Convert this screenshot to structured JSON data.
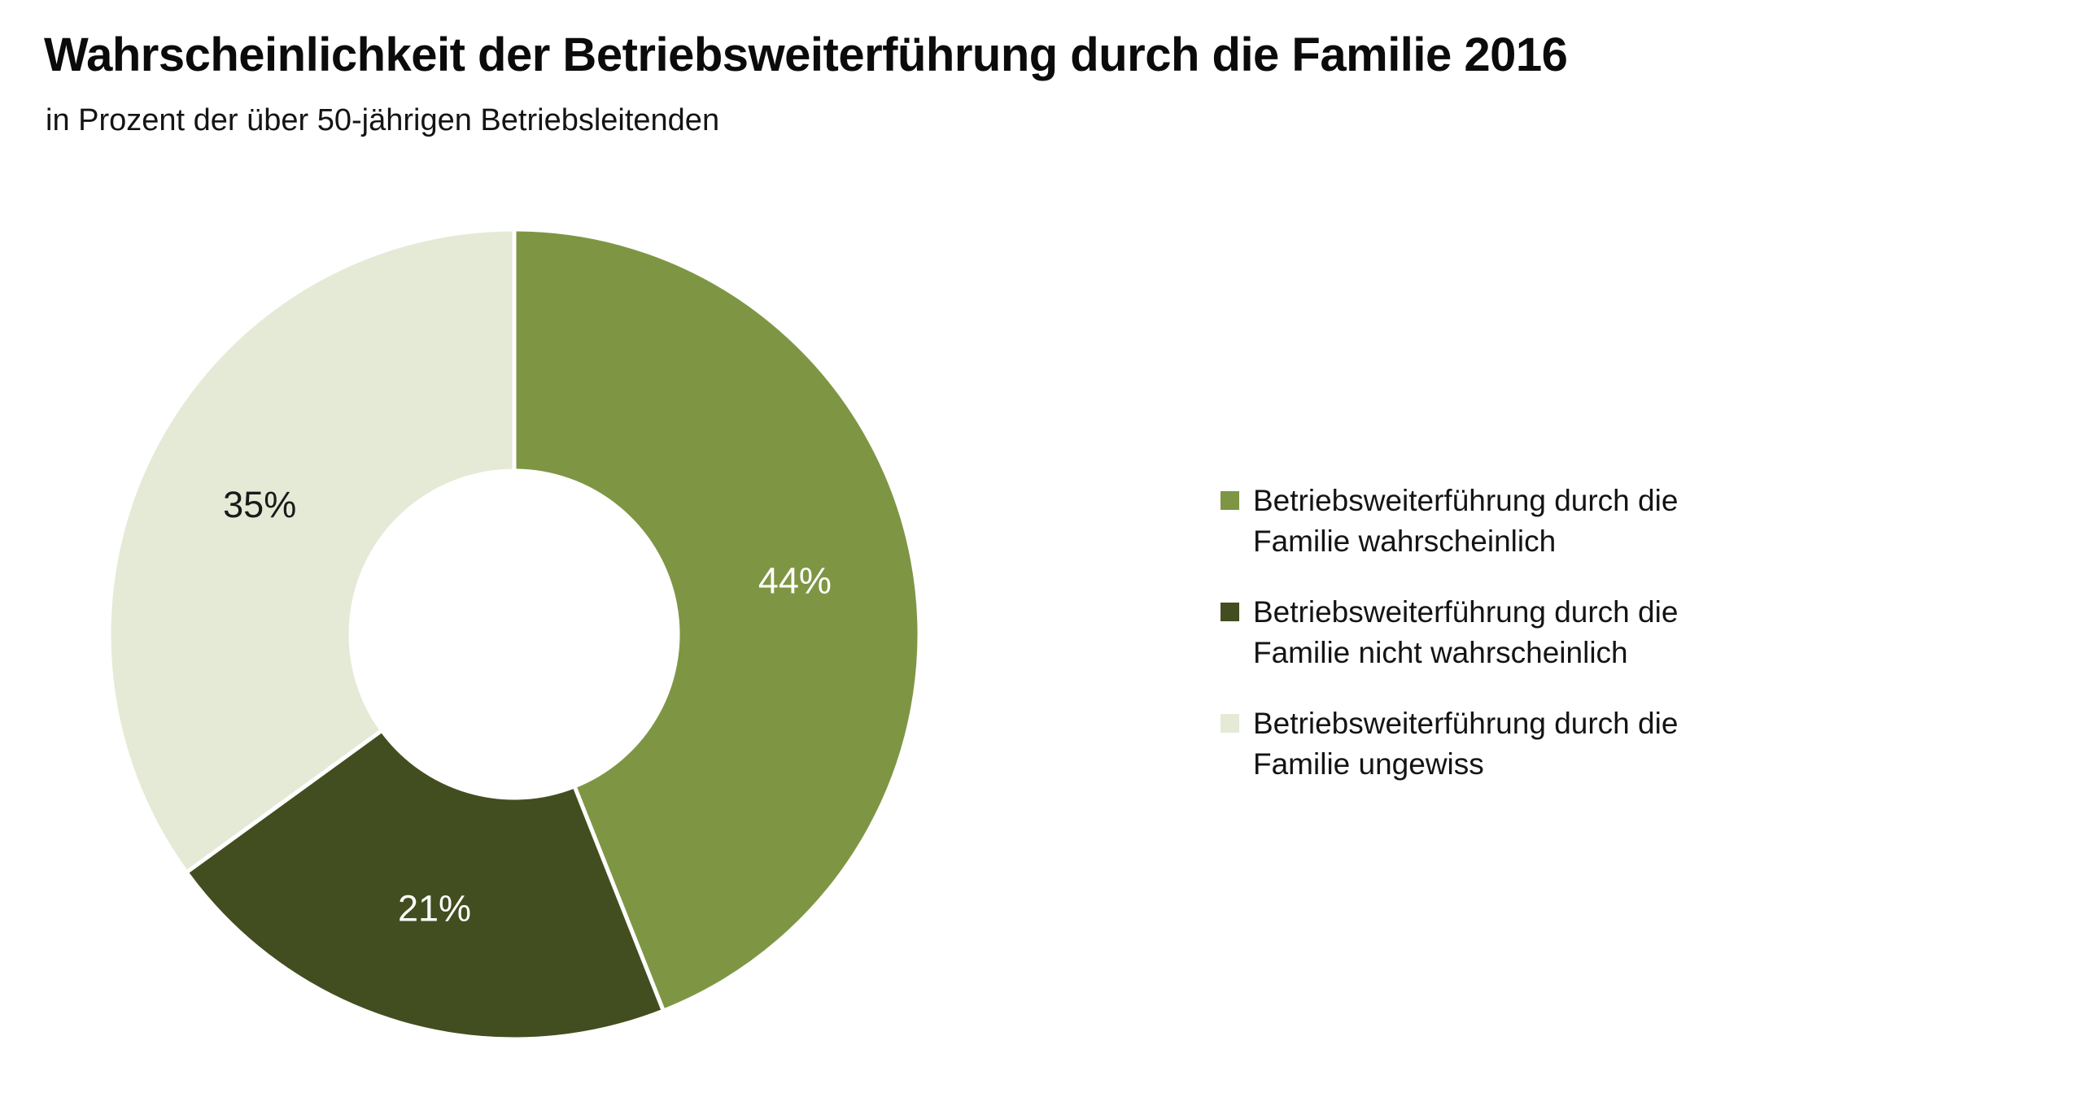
{
  "header": {
    "title": "Wahrscheinlichkeit der Betriebsweiterführung durch die Familie 2016",
    "subtitle": "in Prozent der über 50-jährigen Betriebsleitenden"
  },
  "chart_data": {
    "type": "pie",
    "donut": true,
    "title": "Wahrscheinlichkeit der Betriebsweiterführung durch die Familie 2016",
    "subtitle": "in Prozent der über 50-jährigen Betriebsleitenden",
    "categories": [
      "Betriebsweiterführung durch die Familie wahrscheinlich",
      "Betriebsweiterführung durch die Familie nicht wahrscheinlich",
      "Betriebsweiterführung durch die Familie ungewiss"
    ],
    "values": [
      44,
      21,
      35
    ],
    "data_labels": [
      "44%",
      "21%",
      "35%"
    ],
    "unit": "%",
    "colors": [
      "#7E9644",
      "#434E20",
      "#E4EAD5"
    ],
    "data_label_colors": [
      "#FFFFFF",
      "#FFFFFF",
      "#1A1A1A"
    ],
    "start_angle_deg": 0,
    "direction": "clockwise",
    "inner_radius_ratio": 0.403,
    "label_radius_ratio": 0.705,
    "separator_color": "#FFFFFF",
    "legend_position": "right",
    "background": "#FFFFFF"
  },
  "legend": {
    "items": [
      {
        "label": "Betriebsweiterführung durch die Familie wahrscheinlich",
        "lines": [
          "Betriebsweiterführung durch die",
          "Familie wahrscheinlich"
        ],
        "color": "#7E9644"
      },
      {
        "label": "Betriebsweiterführung durch die Familie nicht wahrscheinlich",
        "lines": [
          "Betriebsweiterführung durch die",
          "Familie nicht wahrscheinlich"
        ],
        "color": "#434E20"
      },
      {
        "label": "Betriebsweiterführung durch die Familie ungewiss",
        "lines": [
          "Betriebsweiterführung durch die",
          "Familie ungewiss"
        ],
        "color": "#E4EAD5"
      }
    ]
  }
}
